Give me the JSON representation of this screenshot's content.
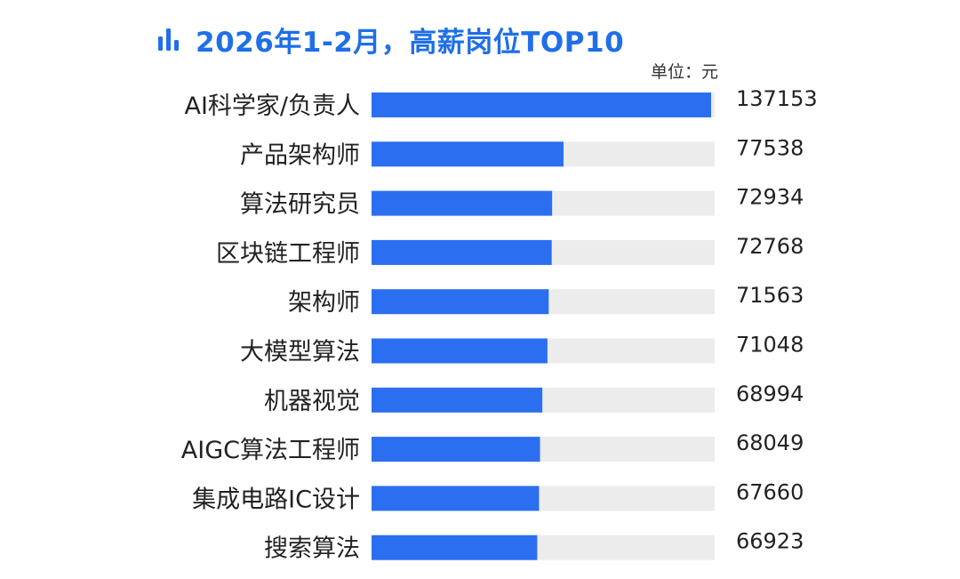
{
  "header": {
    "icon": "bar-chart-icon",
    "title": "2026年1-2月，高薪岗位TOP10",
    "unit": "单位：元"
  },
  "colors": {
    "accent": "#1f6fe8",
    "bar": "#2b6ff0",
    "track": "#ececec",
    "text": "#222222"
  },
  "chart_data": {
    "type": "bar",
    "orientation": "horizontal",
    "title": "2026年1-2月，高薪岗位TOP10",
    "unit": "单位：元",
    "categories": [
      "AI科学家/负责人",
      "产品架构师",
      "算法研究员",
      "区块链工程师",
      "架构师",
      "大模型算法",
      "机器视觉",
      "AIGC算法工程师",
      "集成电路IC设计",
      "搜索算法"
    ],
    "values": [
      137153,
      77538,
      72934,
      72768,
      71563,
      71048,
      68994,
      68049,
      67660,
      66923
    ],
    "xlim": [
      0,
      137153
    ],
    "grid": false,
    "legend": "none"
  }
}
